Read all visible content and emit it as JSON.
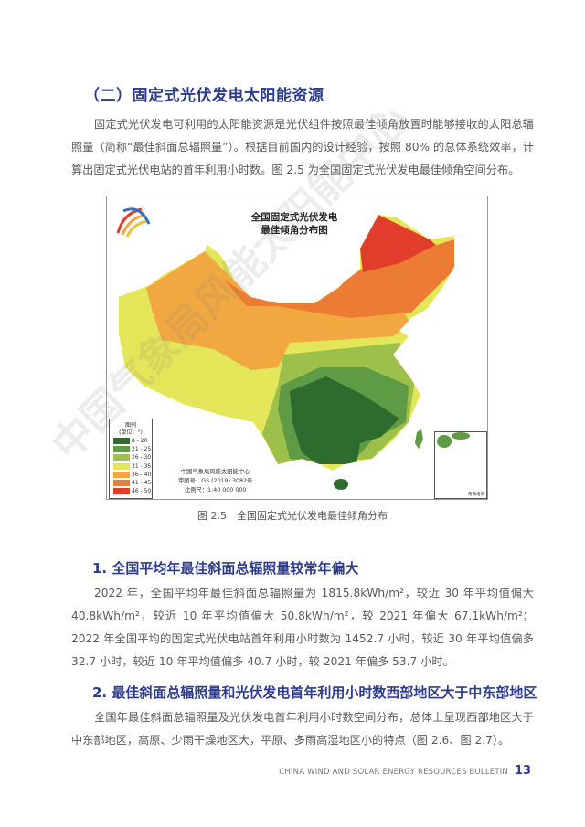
{
  "section_title": "（二）固定式光伏发电太阳能资源",
  "intro_paragraph": "固定式光伏发电可利用的太阳能资源是光伏组件按照最佳倾角放置时能够接收的太阳总辐照量（简称“最佳斜面总辐照量”）。根据目前国内的设计经验，按照 80% 的总体系统效率，计算出固定式光伏电站的首年利用小时数。图 2.5 为全国固定式光伏发电最佳倾角空间分布。",
  "map": {
    "title_line1": "全国固定式光伏发电",
    "title_line2": "最佳倾角分布图",
    "legend": {
      "title": "图例",
      "unit": "(单位：°)",
      "items": [
        {
          "label": "8 - 20",
          "color": "#2e6b2f"
        },
        {
          "label": "21 - 25",
          "color": "#5f9a45"
        },
        {
          "label": "26 - 30",
          "color": "#9dc04a"
        },
        {
          "label": "31 - 35",
          "color": "#e4e65a"
        },
        {
          "label": "36 - 40",
          "color": "#f2a840"
        },
        {
          "label": "41 - 45",
          "color": "#ec7b33"
        },
        {
          "label": "46 - 50",
          "color": "#e23d2c"
        }
      ]
    },
    "credit_org": "中国气象局风能太阳能中心",
    "credit_review": "审图号：GS (2019) 3082号",
    "credit_scale": "比例尺：1:40 000 000",
    "inset_label": "南海诸岛"
  },
  "figure_caption": "图 2.5　全国固定式光伏发电最佳倾角分布",
  "section1": {
    "heading": "1. 全国平均年最佳斜面总辐照量较常年偏大",
    "paragraph": "2022 年，全国平均年最佳斜面总辐照量为 1815.8kWh/m²，较近 30 年平均值偏大 40.8kWh/m²，较近 10 年平均值偏大 50.8kWh/m²，较 2021 年偏大 67.1kWh/m²；2022 年全国平均的固定式光伏电站首年利用小时数为 1452.7 小时，较近 30 年平均值偏多 32.7 小时，较近 10 年平均值偏多 40.7 小时，较 2021 年偏多 53.7 小时。"
  },
  "section2": {
    "heading": "2. 最佳斜面总辐照量和光伏发电首年利用小时数西部地区大于中东部地区",
    "paragraph": "全国年最佳斜面总辐照量及光伏发电首年利用小时数空间分布，总体上呈现西部地区大于中东部地区，高原、少雨干燥地区大，平原、多雨高湿地区小的特点（图 2.6、图 2.7）。"
  },
  "footer": {
    "bulletin": "CHINA WIND AND SOLAR ENERGY RESOURCES BULLETIN",
    "page": "13"
  },
  "watermark": "中国气象局风能太阳能中心"
}
